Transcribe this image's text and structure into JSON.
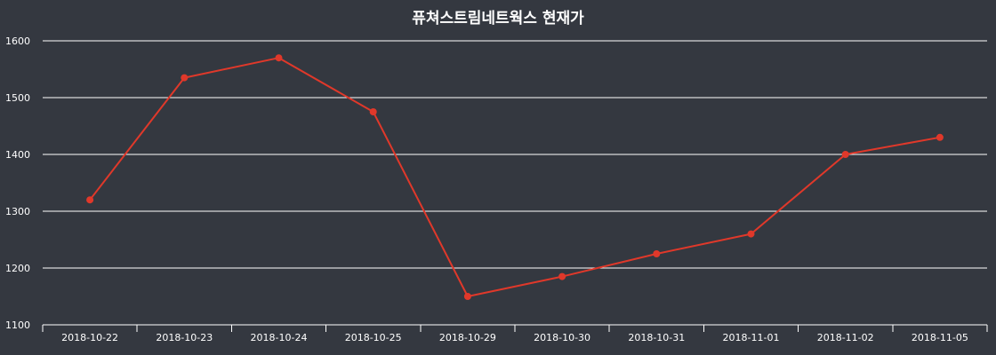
{
  "chart_data": {
    "type": "line",
    "title": "퓨쳐스트림네트웍스 현재가",
    "xlabel": "",
    "ylabel": "",
    "categories": [
      "2018-10-22",
      "2018-10-23",
      "2018-10-24",
      "2018-10-25",
      "2018-10-29",
      "2018-10-30",
      "2018-10-31",
      "2018-11-01",
      "2018-11-02",
      "2018-11-05"
    ],
    "series": [
      {
        "values": [
          1320,
          1535,
          1570,
          1475,
          1150,
          1185,
          1225,
          1260,
          1400,
          1430
        ]
      }
    ],
    "ylim": [
      1100,
      1600
    ],
    "yticks": [
      1100,
      1200,
      1300,
      1400,
      1500,
      1600
    ],
    "grid": true,
    "legend": "none",
    "colors": {
      "background": "#343840",
      "line": "#e0382a",
      "grid": "#ffffff",
      "text": "#ffffff"
    }
  }
}
